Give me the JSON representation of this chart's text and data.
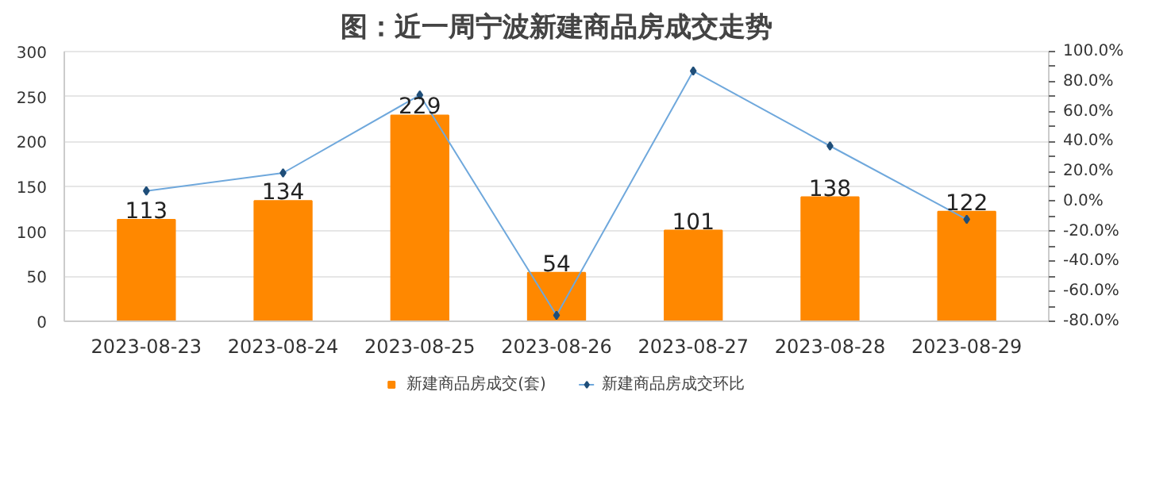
{
  "chart_data": {
    "type": "bar",
    "title": "图：近一周宁波新建商品房成交走势",
    "categories": [
      "2023-08-23",
      "2023-08-24",
      "2023-08-25",
      "2023-08-26",
      "2023-08-27",
      "2023-08-28",
      "2023-08-29"
    ],
    "series": [
      {
        "name": "新建商品房成交(套)",
        "color": "#ff8800",
        "values": [
          113,
          134,
          229,
          54,
          101,
          138,
          122
        ],
        "data_labels": true
      },
      {
        "name": "新建商品房成交环比",
        "type": "line",
        "axis": "y2",
        "color": "#6fa8dc",
        "marker": "diamond",
        "values": [
          7,
          19,
          71,
          -76,
          87,
          37,
          -12
        ]
      }
    ],
    "ylim": [
      0,
      300
    ],
    "yticks": [
      0,
      50,
      100,
      150,
      200,
      250,
      300
    ],
    "y2lim": [
      -80,
      100
    ],
    "y2ticks": [
      {
        "value": -80,
        "label": "-80.0%"
      },
      {
        "value": -60,
        "label": "-60.0%"
      },
      {
        "value": -40,
        "label": "-40.0%"
      },
      {
        "value": -20,
        "label": "-20.0%"
      },
      {
        "value": 0,
        "label": "0.0%"
      },
      {
        "value": 20,
        "label": "20.0%"
      },
      {
        "value": 40,
        "label": "40.0%"
      },
      {
        "value": 60,
        "label": "60.0%"
      },
      {
        "value": 80,
        "label": "80.0%"
      },
      {
        "value": 100,
        "label": "100.0%"
      }
    ],
    "grid": "y",
    "legend": "bottom"
  }
}
